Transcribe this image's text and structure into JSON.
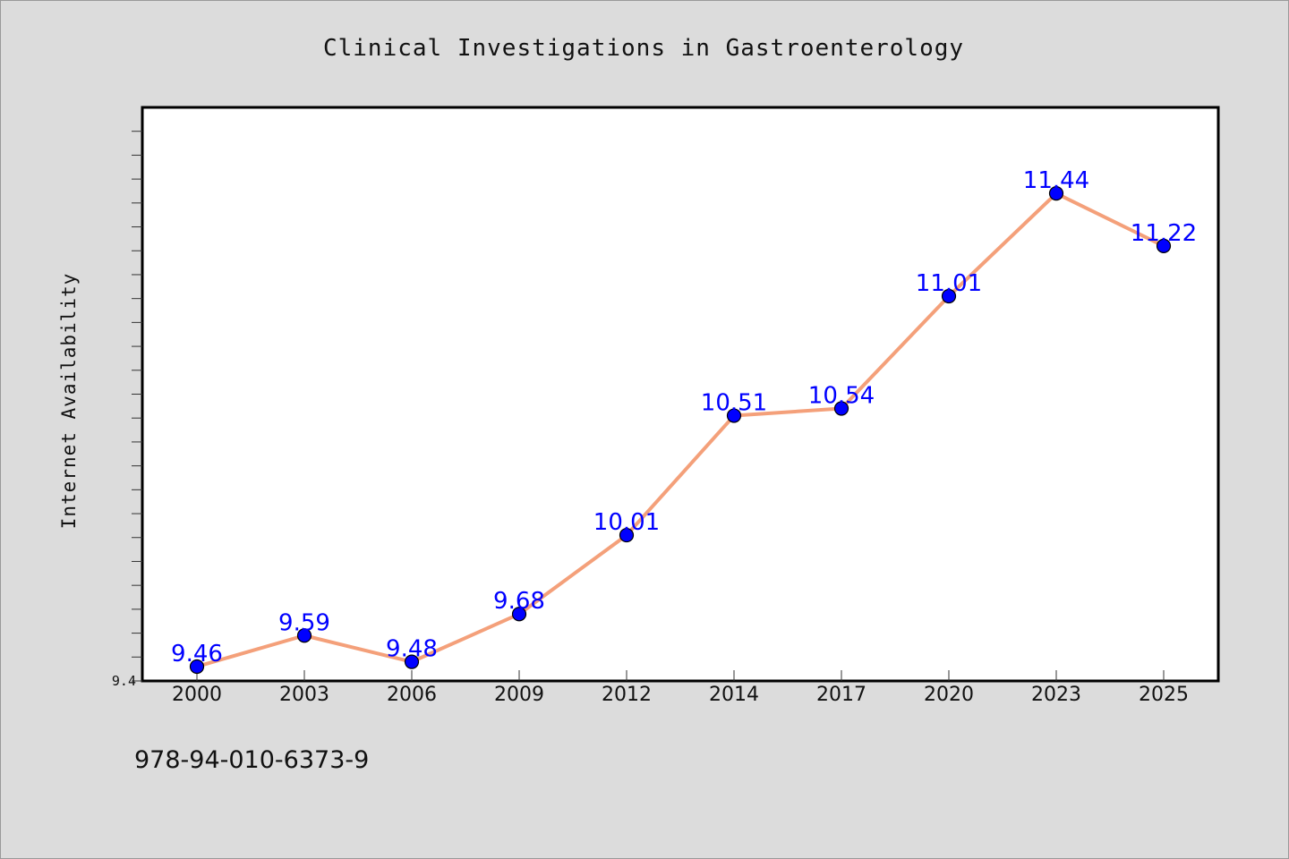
{
  "footer_text": "978-94-010-6373-9",
  "chart_data": {
    "type": "line",
    "title": "Clinical Investigations in Gastroenterology",
    "xlabel": "",
    "ylabel": "Internet Availability",
    "categories": [
      "2000",
      "2003",
      "2006",
      "2009",
      "2012",
      "2014",
      "2017",
      "2020",
      "2023",
      "2025"
    ],
    "series": [
      {
        "values": [
          9.46,
          9.59,
          9.48,
          9.68,
          10.01,
          10.51,
          10.54,
          11.01,
          11.44,
          11.22
        ]
      }
    ],
    "data_labels": [
      "9.46",
      "9.59",
      "9.48",
      "9.68",
      "10.01",
      "10.51",
      "10.54",
      "11.01",
      "11.44",
      "11.22"
    ],
    "ylim": [
      9.4,
      11.8
    ],
    "yticks_labeled": [
      {
        "value": 9.4,
        "label": "9.4"
      }
    ],
    "grid": false,
    "legend": "none",
    "line_color": "#f4a07a",
    "marker_color": "#0000ff",
    "label_color": "#0000ff",
    "plot_background": "#ffffff",
    "figure_background": "#dcdcdc"
  }
}
